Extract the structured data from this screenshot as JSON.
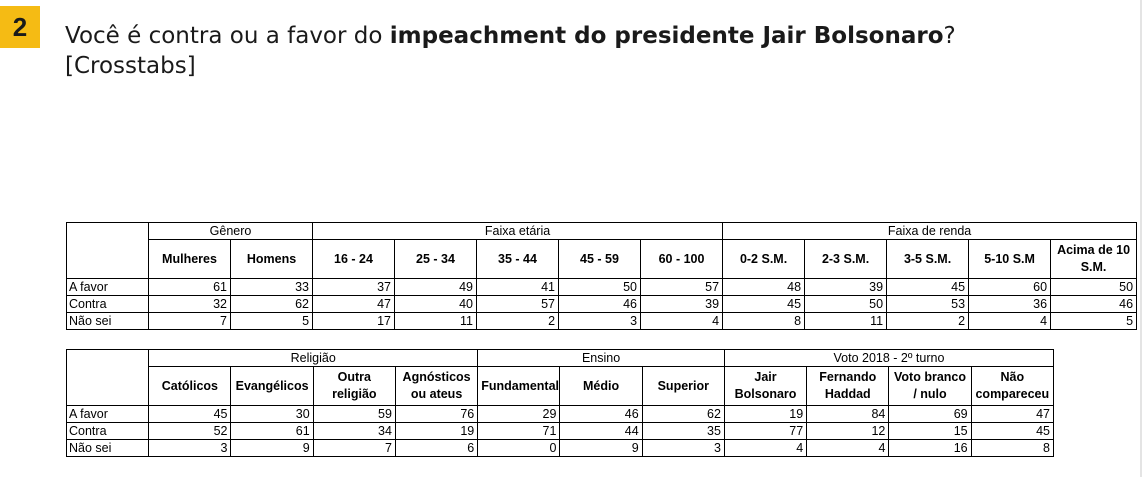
{
  "badge": "2",
  "title": {
    "prefix": "Você é contra ou a favor do ",
    "bold": "impeachment do presidente Jair Bolsonaro",
    "suffix": "?",
    "line2": "[Crosstabs]"
  },
  "table1": {
    "groups": [
      {
        "label": "Gênero",
        "span": 2
      },
      {
        "label": "Faixa etária",
        "span": 5
      },
      {
        "label": "Faixa de renda",
        "span": 5
      }
    ],
    "columns": [
      "Mulheres",
      "Homens",
      "16 - 24",
      "25 - 34",
      "35 - 44",
      "45 - 59",
      "60 - 100",
      "0-2 S.M.",
      "2-3 S.M.",
      "3-5 S.M.",
      "5-10 S.M",
      "Acima de 10 S.M."
    ],
    "rows": [
      {
        "label": "A favor",
        "values": [
          61,
          33,
          37,
          49,
          41,
          50,
          57,
          48,
          39,
          45,
          60,
          50
        ]
      },
      {
        "label": "Contra",
        "values": [
          32,
          62,
          47,
          40,
          57,
          46,
          39,
          45,
          50,
          53,
          36,
          46
        ]
      },
      {
        "label": "Não sei",
        "values": [
          7,
          5,
          17,
          11,
          2,
          3,
          4,
          8,
          11,
          2,
          4,
          5
        ]
      }
    ]
  },
  "table2": {
    "groups": [
      {
        "label": "Religião",
        "span": 4
      },
      {
        "label": "Ensino",
        "span": 3
      },
      {
        "label": "Voto 2018 - 2º turno",
        "span": 4
      }
    ],
    "columns": [
      "Católicos",
      "Evangélicos",
      "Outra religião",
      "Agnósticos ou ateus",
      "Fundamental",
      "Médio",
      "Superior",
      "Jair Bolsonaro",
      "Fernando Haddad",
      "Voto branco / nulo",
      "Não compareceu"
    ],
    "rows": [
      {
        "label": "A favor",
        "values": [
          45,
          30,
          59,
          76,
          29,
          46,
          62,
          19,
          84,
          69,
          47
        ]
      },
      {
        "label": "Contra",
        "values": [
          52,
          61,
          34,
          19,
          71,
          44,
          35,
          77,
          12,
          15,
          45
        ]
      },
      {
        "label": "Não sei",
        "values": [
          3,
          9,
          7,
          6,
          0,
          9,
          3,
          4,
          4,
          16,
          8
        ]
      }
    ]
  }
}
